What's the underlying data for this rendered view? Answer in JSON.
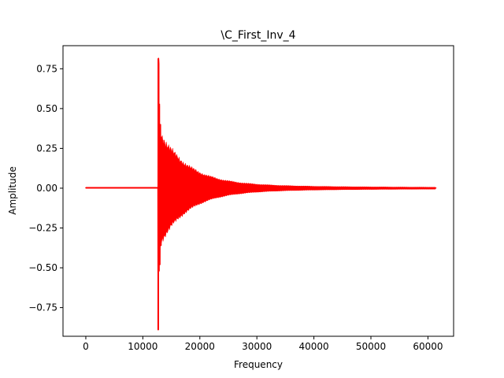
{
  "chart_data": {
    "type": "line",
    "title": "\\C_First_Inv_4",
    "xlabel": "Frequency",
    "ylabel": "Amplitude",
    "xlim": [
      -4000,
      64500
    ],
    "ylim": [
      -0.93,
      0.895
    ],
    "xticks": [
      0,
      10000,
      20000,
      30000,
      40000,
      50000,
      60000
    ],
    "yticks": [
      -0.75,
      -0.5,
      -0.25,
      0.0,
      0.25,
      0.5,
      0.75
    ],
    "xtick_labels": [
      "0",
      "10000",
      "20000",
      "30000",
      "40000",
      "50000",
      "60000"
    ],
    "ytick_labels": [
      "−0.75",
      "−0.50",
      "−0.25",
      "0.00",
      "0.25",
      "0.50",
      "0.75"
    ],
    "grid": false,
    "series": [
      {
        "color": "#ff0000",
        "points": [
          [
            0,
            0.002
          ],
          [
            12650,
            0.002
          ],
          [
            12700,
            -0.89
          ],
          [
            12750,
            0.815
          ],
          [
            12800,
            0.78
          ],
          [
            12850,
            -0.52
          ],
          [
            12900,
            0.52
          ],
          [
            13000,
            -0.48
          ],
          [
            13100,
            0.4
          ],
          [
            13200,
            -0.36
          ],
          [
            13300,
            0.32
          ],
          [
            13500,
            -0.3
          ],
          [
            13700,
            0.3
          ],
          [
            14000,
            -0.25
          ],
          [
            14500,
            0.2
          ],
          [
            15000,
            -0.16
          ],
          [
            16000,
            0.12
          ],
          [
            17000,
            -0.1
          ],
          [
            18000,
            0.08
          ],
          [
            19000,
            -0.07
          ],
          [
            20000,
            0.06
          ],
          [
            22000,
            -0.045
          ],
          [
            24000,
            0.035
          ],
          [
            26000,
            -0.03
          ],
          [
            28000,
            0.022
          ],
          [
            30000,
            -0.02
          ],
          [
            32000,
            0.015
          ],
          [
            34000,
            -0.012
          ],
          [
            36000,
            0.01
          ],
          [
            38000,
            -0.008
          ],
          [
            40000,
            0.006
          ],
          [
            45000,
            -0.004
          ],
          [
            50000,
            0.003
          ],
          [
            55000,
            -0.002
          ],
          [
            61400,
            0.001
          ]
        ]
      }
    ]
  }
}
